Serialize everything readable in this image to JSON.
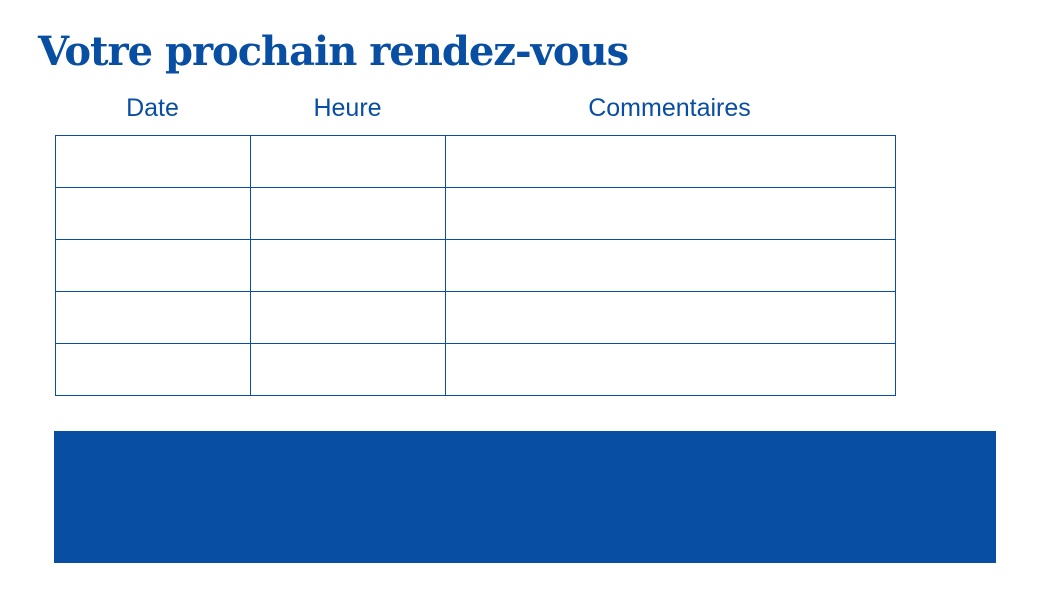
{
  "title": "Votre prochain rendez-vous",
  "columns": [
    "Date",
    "Heure",
    "Commentaires"
  ],
  "rows": 5,
  "colors": {
    "accent": "#084ea2"
  }
}
